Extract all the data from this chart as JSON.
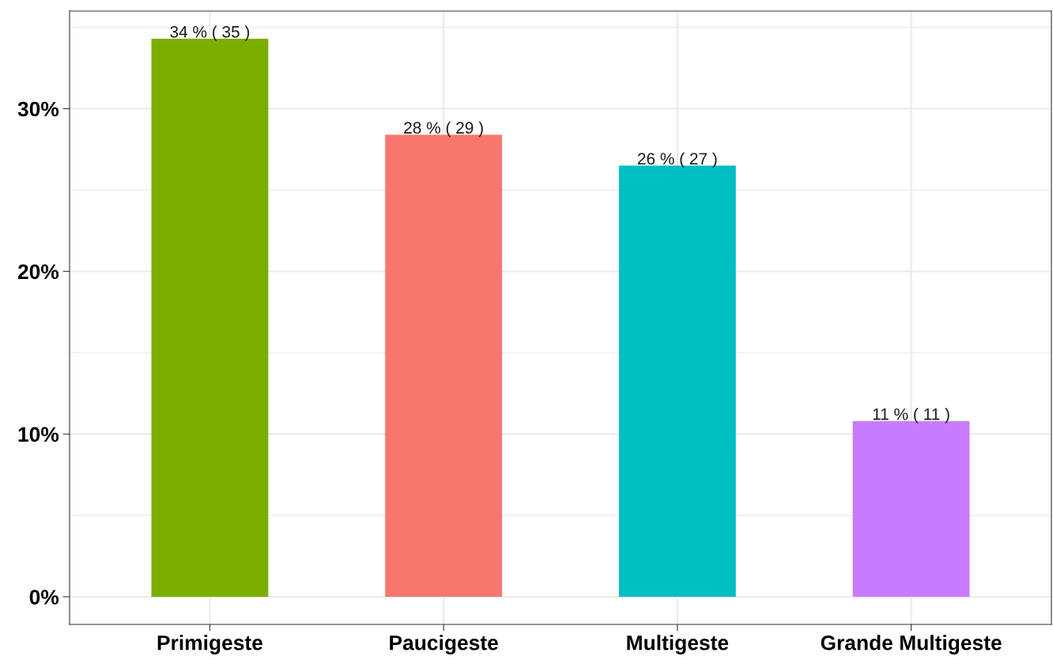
{
  "chart_data": {
    "type": "bar",
    "categories": [
      "Primigeste",
      "Paucigeste",
      "Multigeste",
      "Grande Multigeste"
    ],
    "values": [
      34.3,
      28.4,
      26.5,
      10.8
    ],
    "colors": [
      "#7cae00",
      "#f8766d",
      "#00bfc4",
      "#c77cff"
    ],
    "value_labels": [
      "34 % ( 35 )",
      "28 % ( 29 )",
      "26 % ( 27 )",
      "11 % ( 11 )"
    ],
    "ylim": [
      -1.7,
      36
    ],
    "yticks": [
      {
        "value": 0,
        "label": "0%"
      },
      {
        "value": 10,
        "label": "10%"
      },
      {
        "value": 20,
        "label": "20%"
      },
      {
        "value": 30,
        "label": "30%"
      }
    ],
    "grid": true,
    "legend": false
  }
}
